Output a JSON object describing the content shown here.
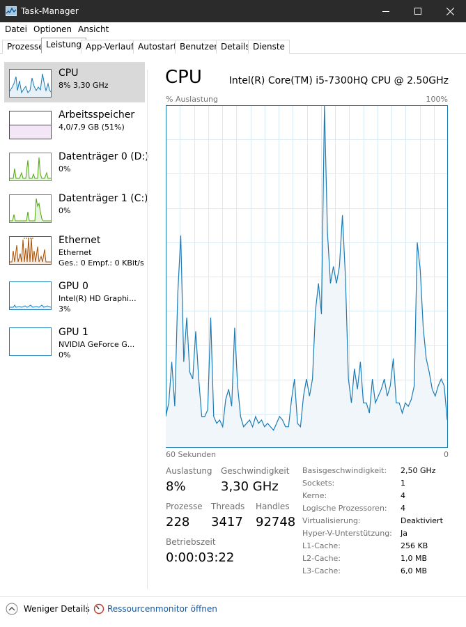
{
  "window": {
    "title": "Task-Manager"
  },
  "menu": {
    "file": "Datei",
    "options": "Optionen",
    "view": "Ansicht"
  },
  "tabs": [
    "Prozesse",
    "Leistung",
    "App-Verlauf",
    "Autostart",
    "Benutzer",
    "Details",
    "Dienste"
  ],
  "sidebar": {
    "cpu": {
      "title": "CPU",
      "sub": "8% 3,30 GHz"
    },
    "memory": {
      "title": "Arbeitsspeicher",
      "sub": "4,0/7,9 GB (51%)"
    },
    "disk0": {
      "title": "Datenträger 0 (D:)",
      "sub": "0%"
    },
    "disk1": {
      "title": "Datenträger 1 (C:)",
      "sub": "0%"
    },
    "ethernet": {
      "title": "Ethernet",
      "sub": "Ethernet",
      "sub2": "Ges.: 0 Empf.: 0 KBit/s"
    },
    "gpu0": {
      "title": "GPU 0",
      "sub": "Intel(R) HD Graphi...",
      "sub2": "3%"
    },
    "gpu1": {
      "title": "GPU 1",
      "sub": "NVIDIA GeForce G...",
      "sub2": "0%"
    }
  },
  "main": {
    "title": "CPU",
    "cpu_name": "Intel(R) Core(TM) i5-7300HQ CPU @ 2.50GHz",
    "graph_label": "% Auslastung",
    "graph_max": "100%",
    "graph_time": "60 Sekunden",
    "graph_zero": "0"
  },
  "stats": {
    "util_label": "Auslastung",
    "util_value": "8%",
    "speed_label": "Geschwindigkeit",
    "speed_value": "3,30 GHz",
    "proc_label": "Prozesse",
    "proc_value": "228",
    "threads_label": "Threads",
    "threads_value": "3417",
    "handles_label": "Handles",
    "handles_value": "92748",
    "uptime_label": "Betriebszeit",
    "uptime_value": "0:00:03:22"
  },
  "details": [
    {
      "key": "Basisgeschwindigkeit:",
      "value": "2,50 GHz"
    },
    {
      "key": "Sockets:",
      "value": "1"
    },
    {
      "key": "Kerne:",
      "value": "4"
    },
    {
      "key": "Logische Prozessoren:",
      "value": "4"
    },
    {
      "key": "Virtualisierung:",
      "value": "Deaktiviert"
    },
    {
      "key": "Hyper-V-Unterstützung:",
      "value": "Ja"
    },
    {
      "key": "L1-Cache:",
      "value": "256 KB"
    },
    {
      "key": "L2-Cache:",
      "value": "1,0 MB"
    },
    {
      "key": "L3-Cache:",
      "value": "6,0 MB"
    }
  ],
  "footer": {
    "less": "Weniger Details",
    "monitor": "Ressourcenmonitor öffnen"
  },
  "colors": {
    "cpu": "#1a7bb5",
    "memory": "#8b12ae",
    "disk": "#4da60c",
    "ethernet": "#a74f01"
  },
  "cpu_series": [
    9,
    13,
    25,
    12,
    45,
    62,
    25,
    38,
    22,
    20,
    34,
    20,
    9,
    9,
    11,
    38,
    9,
    7,
    8,
    6,
    14,
    17,
    12,
    35,
    18,
    9,
    6,
    7,
    8,
    6,
    9,
    7,
    8,
    6,
    7,
    6,
    5,
    7,
    9,
    8,
    6,
    6,
    14,
    20,
    7,
    6,
    15,
    20,
    15,
    20,
    40,
    48,
    39,
    100,
    63,
    48,
    53,
    48,
    53,
    68,
    50,
    20,
    13,
    23,
    17,
    25,
    13,
    13,
    10,
    20,
    13,
    15,
    17,
    20,
    15,
    18,
    26,
    13,
    13,
    10,
    13,
    12,
    14,
    18,
    60,
    52,
    35,
    26,
    22,
    17,
    15,
    18,
    20,
    18,
    8
  ]
}
